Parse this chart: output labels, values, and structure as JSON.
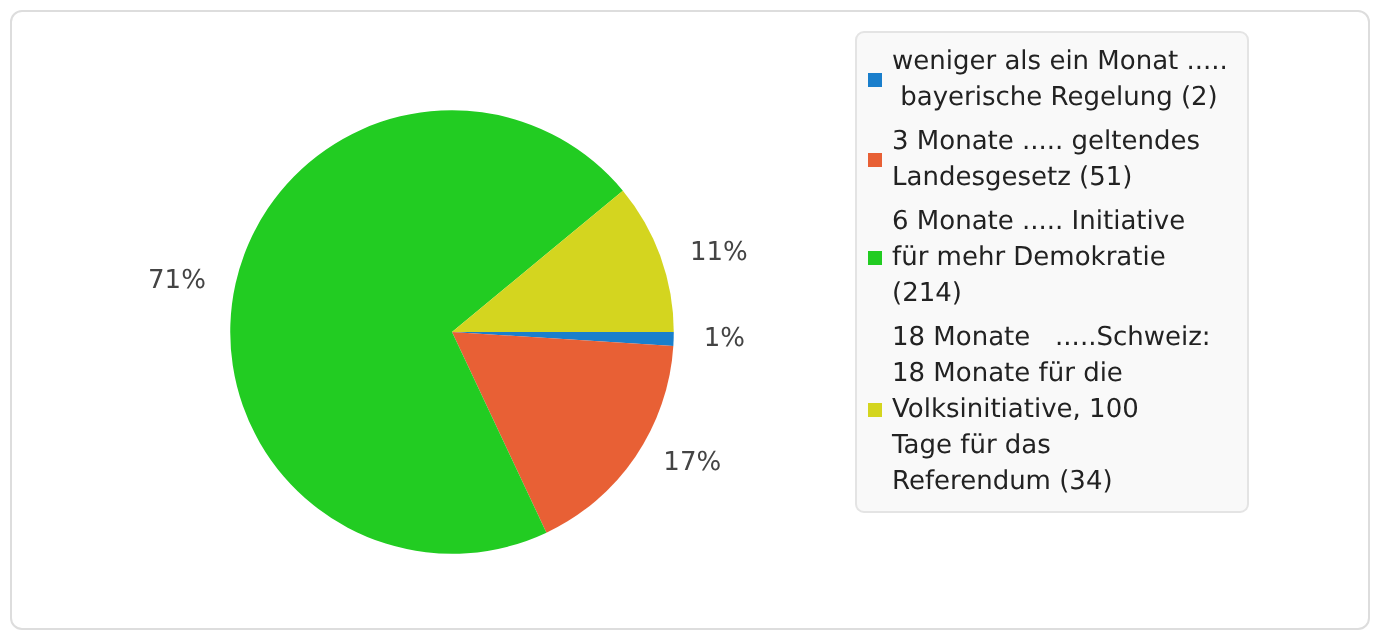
{
  "chart_data": {
    "type": "pie",
    "categories": [
      "weniger als ein Monat ..... bayerische Regelung (2)",
      "3 Monate ..... geltendes Landesgesetz (51)",
      "6 Monate ..... Initiative für mehr Demokratie (214)",
      "18 Monate   .....Schweiz: 18 Monate für die Volksinitiative, 100    Tage für das Referendum (34)"
    ],
    "values": [
      1,
      17,
      71,
      11
    ],
    "value_labels": [
      "1%",
      "17%",
      "71%",
      "11%"
    ],
    "colors": [
      "#1a7fcc",
      "#e86035",
      "#22cc22",
      "#d4d51f"
    ],
    "legend": "top right"
  }
}
